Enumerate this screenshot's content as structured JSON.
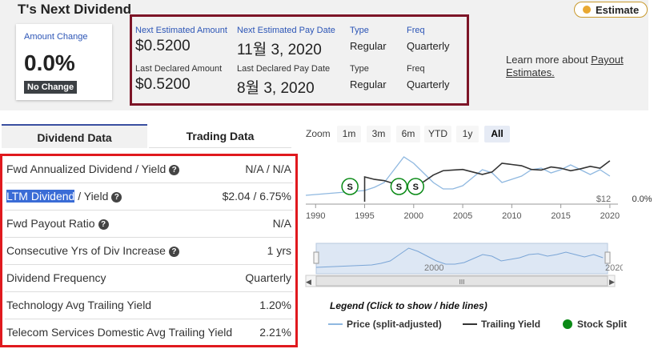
{
  "header": {
    "title": "T's Next Dividend",
    "estimate_button": "Estimate"
  },
  "amount_change": {
    "label": "Amount Change",
    "value": "0.0%",
    "badge": "No Change"
  },
  "estimates": {
    "next_amount_label": "Next Estimated Amount",
    "next_amount": "$0.5200",
    "next_pay_label": "Next Estimated Pay Date",
    "next_pay": "11월 3, 2020",
    "type_label": "Type",
    "type_value": "Regular",
    "freq_label": "Freq",
    "freq_value": "Quarterly",
    "last_amount_label": "Last Declared Amount",
    "last_amount": "$0.5200",
    "last_pay_label": "Last Declared Pay Date",
    "last_pay": "8월 3, 2020",
    "type2_label": "Type",
    "type2_value": "Regular",
    "freq2_label": "Freq",
    "freq2_value": "Quarterly"
  },
  "learn_more": {
    "prefix": "Learn more about ",
    "link_part1": "Payout",
    "link_part2": "Estimates."
  },
  "tabs": [
    {
      "label": "Dividend Data"
    },
    {
      "label": "Trading Data"
    }
  ],
  "dividend_rows": [
    {
      "key": "Fwd Annualized Dividend / Yield",
      "value": "N/A / N/A"
    },
    {
      "key_highlight": "LTM Dividend",
      "key_rest": " / Yield",
      "value": "$2.04 / 6.75%"
    },
    {
      "key": "Fwd Payout Ratio",
      "value": "N/A"
    },
    {
      "key": "Consecutive Yrs of Div Increase",
      "value": "1 yrs"
    },
    {
      "key": "Dividend Frequency",
      "value": "Quarterly"
    },
    {
      "key": "Technology Avg Trailing Yield",
      "value": "1.20%"
    },
    {
      "key": "Telecom Services Domestic Avg Trailing Yield",
      "value": "2.21%"
    }
  ],
  "zoom": {
    "label": "Zoom",
    "buttons": [
      "1m",
      "3m",
      "6m",
      "YTD",
      "1y",
      "All"
    ],
    "selected": "All"
  },
  "chart_data": {
    "type": "line",
    "x_ticks": [
      "1990",
      "1995",
      "2000",
      "2005",
      "2010",
      "2015",
      "2020"
    ],
    "y_right_labels": [
      "$12",
      "0.0%"
    ],
    "split_markers": [
      {
        "year": 1993.5,
        "label": "S"
      },
      {
        "year": 1998.5,
        "label": "S"
      },
      {
        "year": 2000.2,
        "label": "S"
      }
    ],
    "series": [
      {
        "name": "Price (split-adjusted)",
        "color": "#8fb8e0",
        "x": [
          1989,
          1991,
          1993,
          1995,
          1996,
          1997,
          1998,
          1999,
          2000,
          2001,
          2002,
          2003,
          2004,
          2005,
          2006,
          2007,
          2008,
          2009,
          2010,
          2011,
          2012,
          2013,
          2014,
          2015,
          2016,
          2017,
          2018,
          2019,
          2020
        ],
        "values": [
          14,
          15,
          16,
          17,
          19,
          22,
          30,
          38,
          34,
          28,
          22,
          18,
          18,
          20,
          25,
          30,
          28,
          22,
          24,
          26,
          30,
          31,
          28,
          30,
          33,
          30,
          27,
          30,
          26
        ]
      },
      {
        "name": "Trailing Yield",
        "color": "#333333",
        "x": [
          1995,
          1996,
          1997,
          1998,
          1999,
          2000,
          2001,
          2002,
          2003,
          2004,
          2005,
          2006,
          2007,
          2008,
          2009,
          2010,
          2011,
          2012,
          2013,
          2014,
          2015,
          2016,
          2017,
          2018,
          2019,
          2020
        ],
        "values": [
          4.0,
          3.6,
          3.4,
          2.9,
          2.4,
          2.6,
          3.2,
          4.3,
          5.0,
          5.1,
          5.2,
          4.8,
          4.4,
          4.8,
          6.2,
          6.0,
          5.8,
          5.2,
          5.1,
          5.6,
          5.4,
          5.0,
          5.3,
          5.7,
          5.4,
          6.6
        ]
      },
      {
        "name": "Stock Split",
        "color": "#0a8a16"
      }
    ]
  },
  "navigator": {
    "label": "2000",
    "label_right": "2020",
    "scroll_grip": "III"
  },
  "legend": {
    "title": "Legend (Click to show / hide lines)",
    "price": "Price (split-adjusted)",
    "yield": "Trailing Yield",
    "split": "Stock Split"
  }
}
